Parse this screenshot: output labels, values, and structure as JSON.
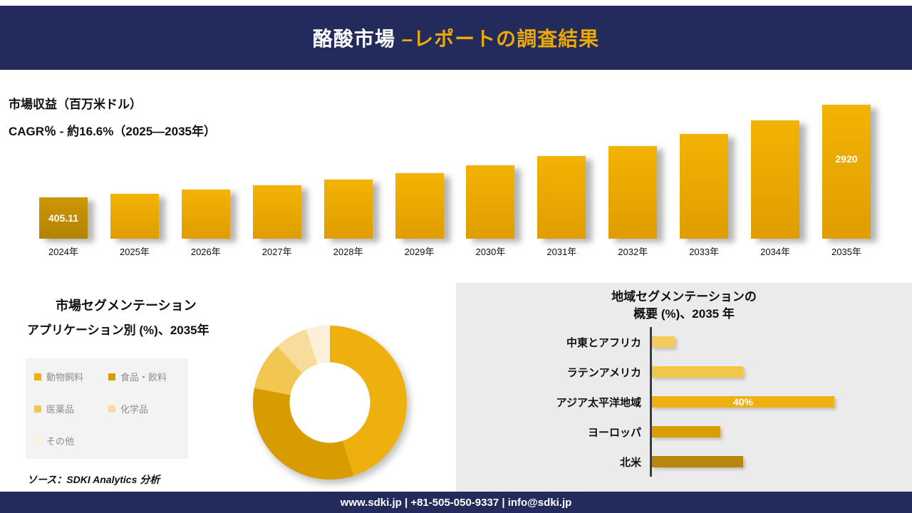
{
  "header": {
    "title_main": "酪酸市場 ",
    "title_accent": "–レポートの調査結果"
  },
  "colors": {
    "navy": "#222b5c",
    "gold_accent": "#eca903"
  },
  "chart_data": [
    {
      "id": "market-revenue-bar-chart",
      "type": "bar",
      "title": "市場収益（百万米ドル）",
      "subtitle": "CAGR％ - 約16.6%（2025―2035年）",
      "categories": [
        "2024年",
        "2025年",
        "2026年",
        "2027年",
        "2028年",
        "2029年",
        "2030年",
        "2031年",
        "2032年",
        "2033年",
        "2034年",
        "2035年"
      ],
      "values": [
        405.11,
        500,
        610,
        740,
        890,
        1070,
        1280,
        1520,
        1800,
        2120,
        2490,
        2920
      ],
      "value_labels": {
        "first": "405.11",
        "last": "2920"
      },
      "ylim": [
        0,
        3200
      ],
      "grid": false,
      "bar_gradient": [
        "#f3b304",
        "#e09d00"
      ],
      "first_bar_gradient": [
        "#cd9703",
        "#b38302"
      ]
    },
    {
      "id": "application-share-donut",
      "type": "pie",
      "title": "市場セグメンテーション",
      "subtitle": "アプリケーション別 (%)、2035年",
      "segments": [
        {
          "label": "動物飼料",
          "value": 45,
          "color": "#edb00e"
        },
        {
          "label": "食品・飲料",
          "value": 33,
          "color": "#d89b00"
        },
        {
          "label": "医薬品",
          "value": 10,
          "color": "#f1c752"
        },
        {
          "label": "化学品",
          "value": 7,
          "color": "#f7dc9b"
        },
        {
          "label": "その他",
          "value": 5,
          "color": "#fcf0d8"
        }
      ],
      "legend_position": "left",
      "source_note": "ソース：SDKI Analytics 分析"
    },
    {
      "id": "region-share-hbar",
      "type": "bar",
      "orientation": "horizontal",
      "title_line1": "地域セグメンテーションの",
      "title_line2": "概要 (%)、2035 年",
      "categories": [
        "中東とアフリカ",
        "ラテンアメリカ",
        "アジア太平洋地域",
        "ヨーロッパ",
        "北米"
      ],
      "values": [
        5,
        20,
        40,
        15,
        20
      ],
      "colors": [
        "#f4ca5e",
        "#f3c64a",
        "#eeb111",
        "#d99e00",
        "#b8860b"
      ],
      "data_label": {
        "index": 2,
        "text": "40%"
      },
      "xlim": [
        0,
        45
      ]
    }
  ],
  "footer": {
    "text": "www.sdki.jp | +81-505-050-9337 | info@sdki.jp"
  }
}
